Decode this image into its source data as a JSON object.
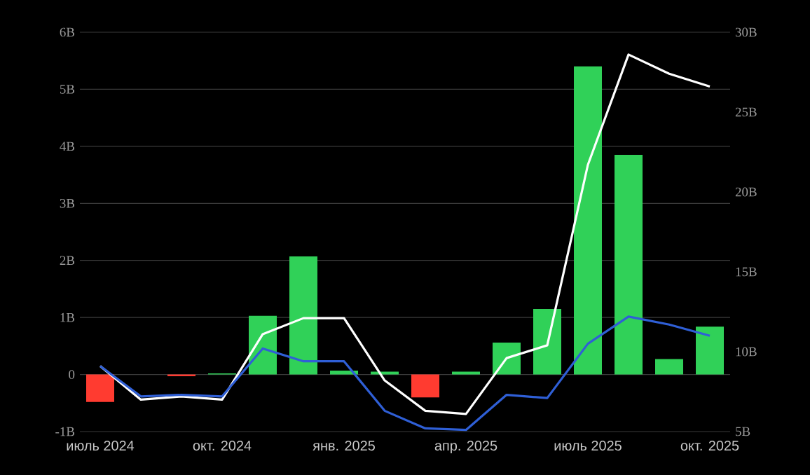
{
  "chart_data": {
    "type": "bar",
    "categories": [
      "июль 2024",
      null,
      null,
      "окт. 2024",
      null,
      null,
      "янв. 2025",
      null,
      null,
      "апр. 2025",
      null,
      null,
      "июль 2025",
      null,
      null,
      "окт. 2025"
    ],
    "series": [
      {
        "colors": [
          "#ff3b30",
          "#30d158",
          "#ff3b30",
          "#30d158",
          "#30d158",
          "#30d158",
          "#30d158",
          "#30d158",
          "#ff3b30",
          "#30d158",
          "#30d158",
          "#30d158",
          "#30d158",
          "#30d158",
          "#30d158",
          "#30d158"
        ],
        "values": [
          -0.48,
          0,
          -0.03,
          0.02,
          1.03,
          2.07,
          0.07,
          0.05,
          -0.4,
          0.05,
          0.56,
          1.15,
          5.4,
          3.85,
          0.27,
          0.84
        ]
      },
      {
        "type": "line",
        "axis": "y2",
        "color": "#ffffff",
        "values": [
          9.1,
          7.0,
          7.2,
          7.0,
          11.1,
          12.1,
          12.1,
          8.2,
          6.3,
          6.1,
          9.6,
          10.4,
          21.7,
          28.6,
          27.4,
          26.6
        ]
      },
      {
        "type": "line",
        "axis": "y2",
        "color": "#2f5fd6",
        "values": [
          9.1,
          7.2,
          7.3,
          7.2,
          10.2,
          9.4,
          9.4,
          6.3,
          5.2,
          5.1,
          7.3,
          7.1,
          10.5,
          12.2,
          11.7,
          11.0
        ]
      }
    ],
    "ylim": [
      -1,
      6
    ],
    "yticks": [
      {
        "value": -1,
        "label": "-1B"
      },
      0,
      {
        "value": 1,
        "label": "1B"
      },
      {
        "value": 2,
        "label": "2B"
      },
      {
        "value": 3,
        "label": "3B"
      },
      {
        "value": 4,
        "label": "4B"
      },
      {
        "value": 5,
        "label": "5B"
      },
      {
        "value": 6,
        "label": "6B"
      }
    ],
    "y2lim": [
      5,
      30
    ],
    "y2ticks": [
      {
        "value": 5,
        "label": "5B"
      },
      {
        "value": 10,
        "label": "10B"
      },
      {
        "value": 15,
        "label": "15B"
      },
      {
        "value": 20,
        "label": "20B"
      },
      {
        "value": 25,
        "label": "25B"
      },
      {
        "value": 30,
        "label": "30B"
      }
    ],
    "grid": "y"
  }
}
